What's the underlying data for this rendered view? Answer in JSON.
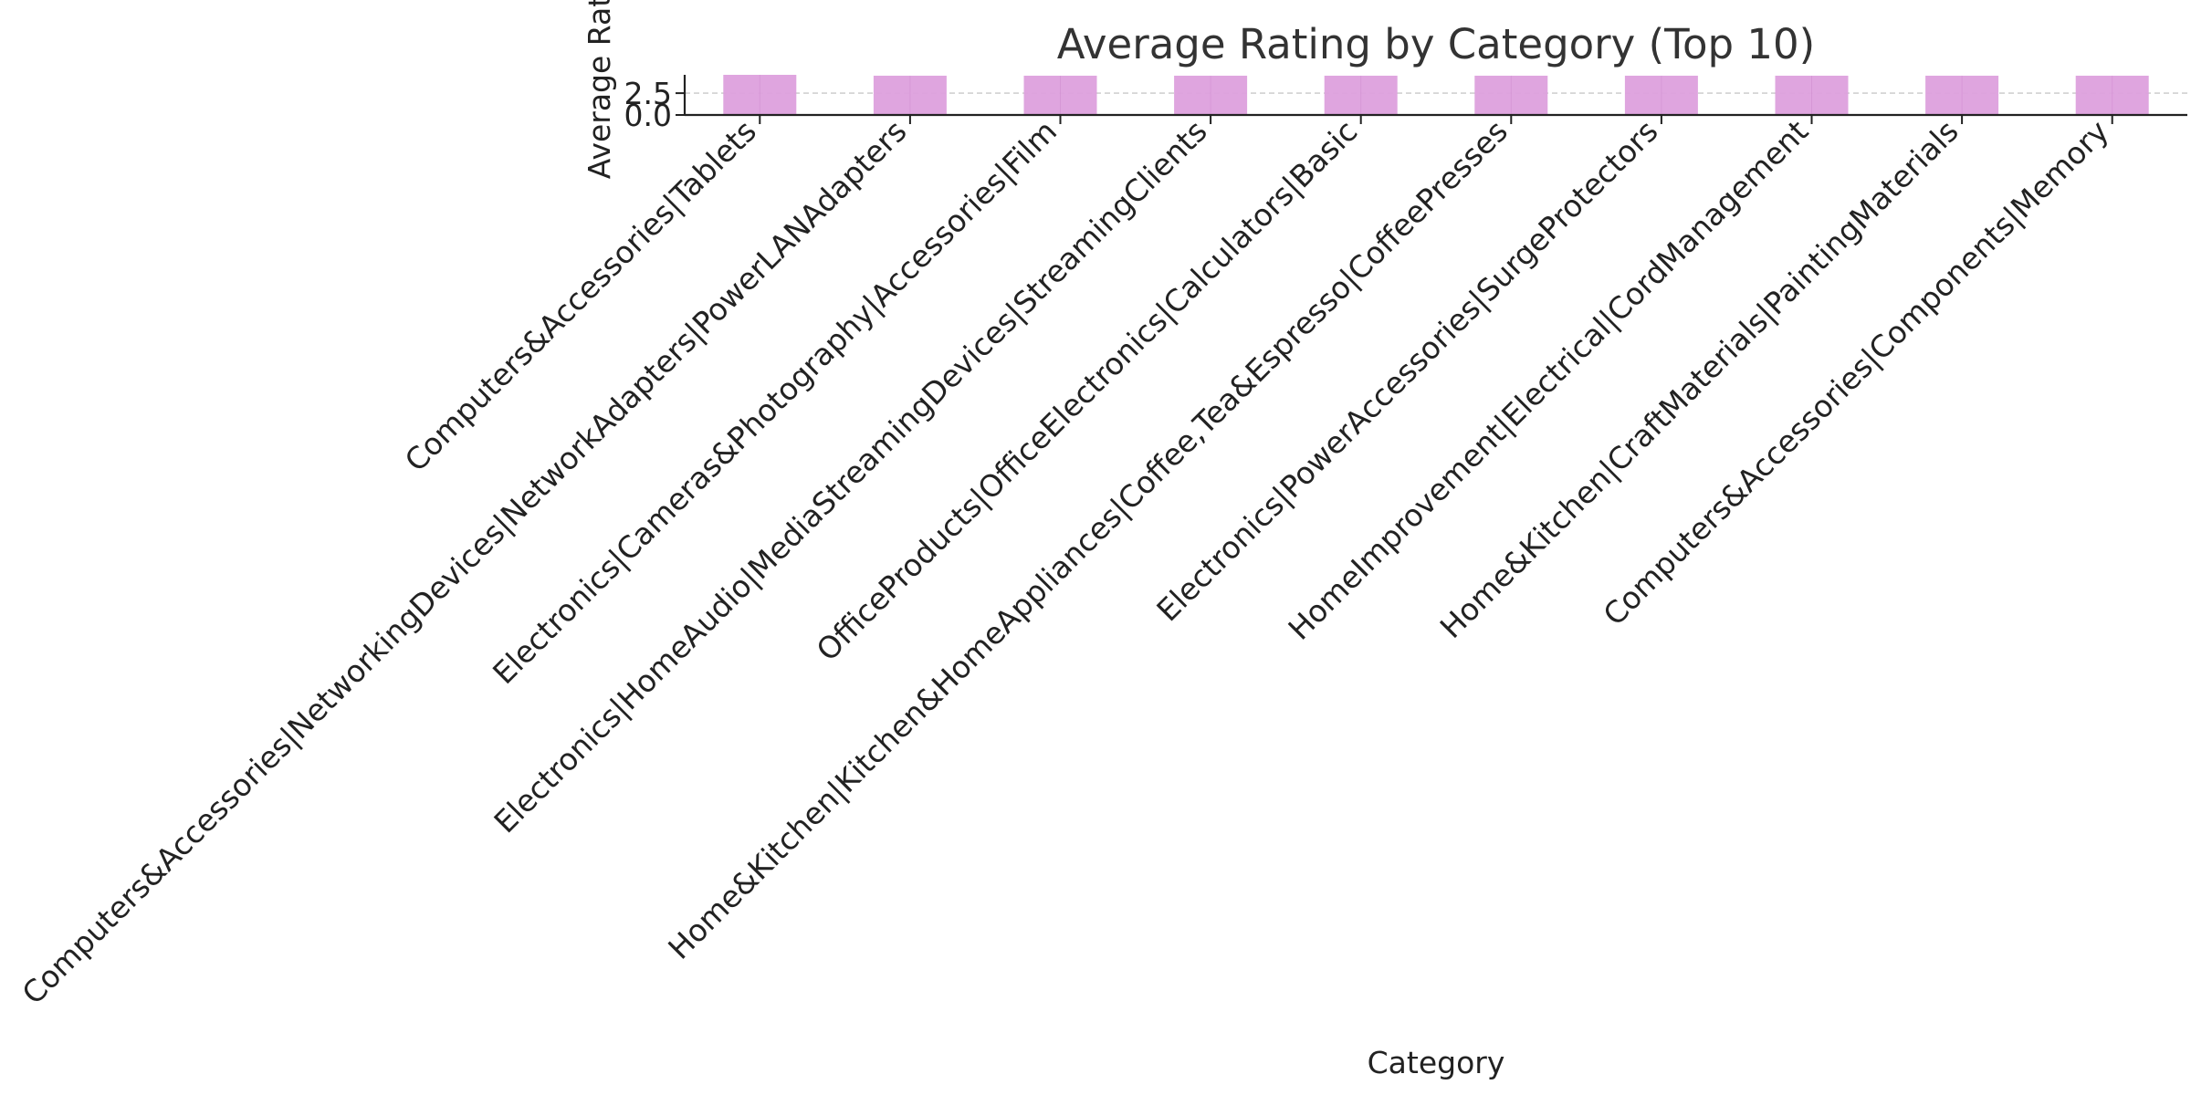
{
  "chart_data": {
    "type": "bar",
    "title": "Average Rating by Category (Top 10)",
    "xlabel": "Category",
    "ylabel": "Average Rating",
    "categories": [
      "Computers&Accessories|Tablets",
      "Computers&Accessories|NetworkingDevices|NetworkAdapters|PowerLANAdapters",
      "Electronics|Cameras&Photography|Accessories|Film",
      "Electronics|HomeAudio|MediaStreamingDevices|StreamingClients",
      "OfficeProducts|OfficeElectronics|Calculators|Basic",
      "Home&Kitchen|Kitchen&HomeAppliances|Coffee,Tea&Espresso|CoffeePresses",
      "Electronics|PowerAccessories|SurgeProtectors",
      "HomeImprovement|Electrical|CordManagement",
      "Home&Kitchen|CraftMaterials|PaintingMaterials",
      "Computers&Accessories|Components|Memory"
    ],
    "values": [
      4.6,
      4.5,
      4.5,
      4.5,
      4.5,
      4.5,
      4.5,
      4.5,
      4.5,
      4.5
    ],
    "yticks": [
      "0.0",
      "2.5"
    ],
    "ylim": [
      0,
      4.6
    ],
    "grid": "y-dashed",
    "legend": "none",
    "colors": {
      "bar": "#dda0dd",
      "text": "#222222",
      "grid": "#c8c8c8",
      "title": "#333333"
    }
  }
}
